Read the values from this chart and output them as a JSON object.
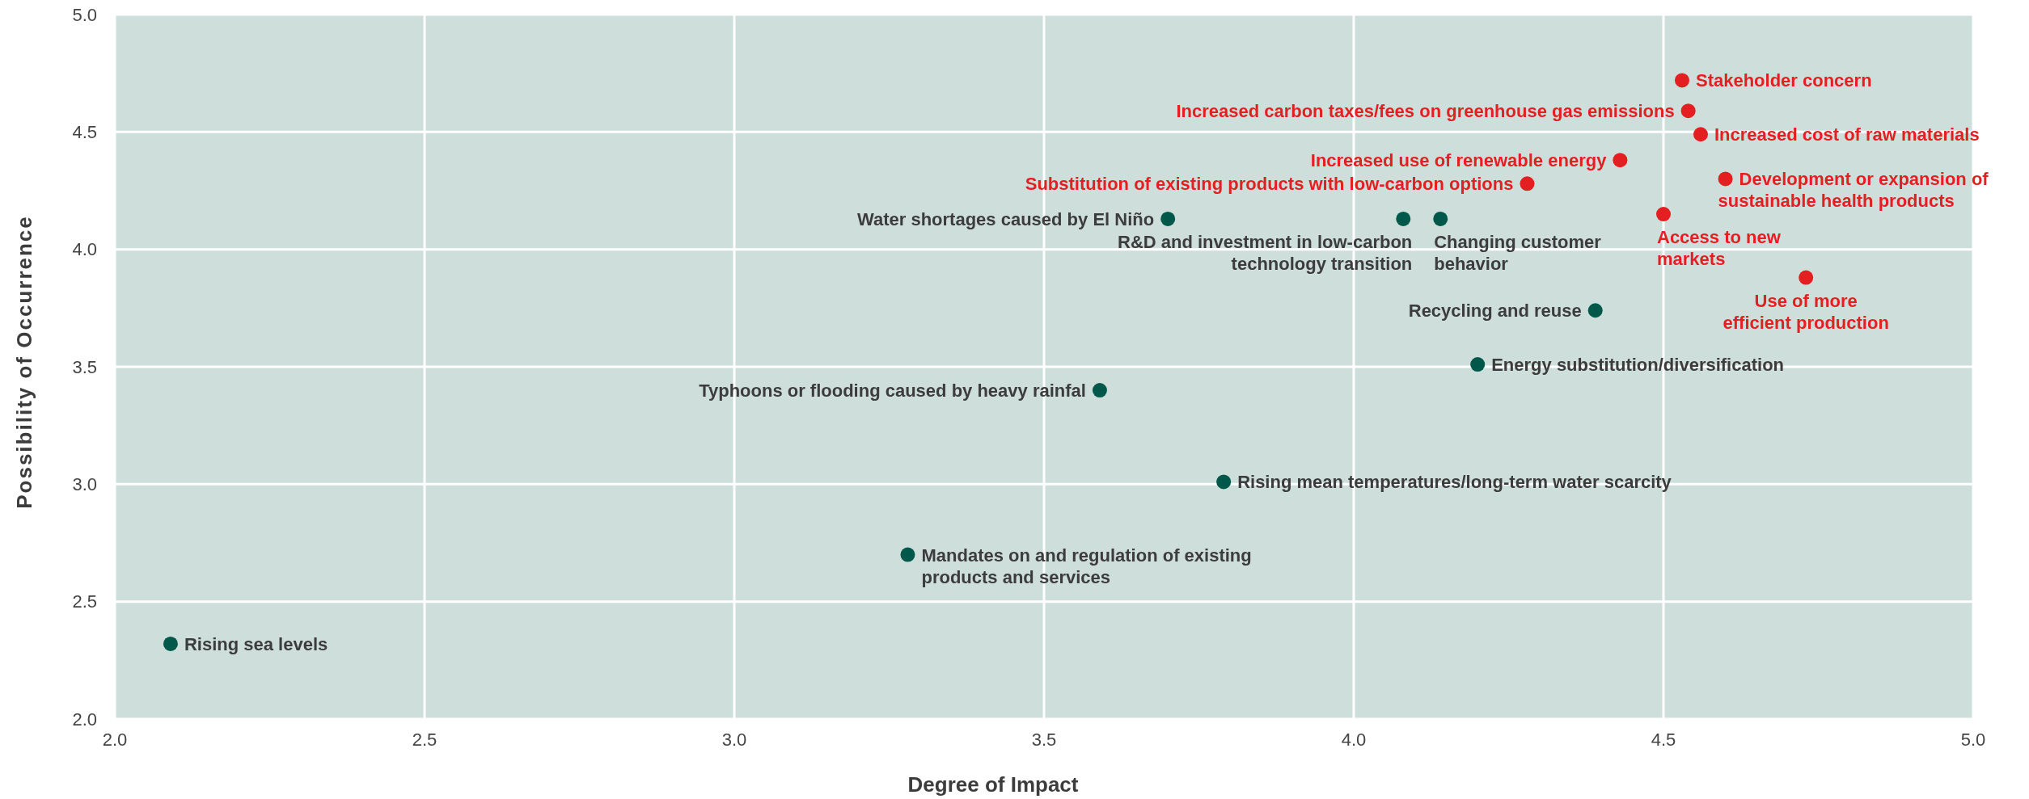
{
  "chart_data": {
    "type": "scatter",
    "xlabel": "Degree of Impact",
    "ylabel": "Possibility of Occurrence",
    "xlim": [
      2,
      5
    ],
    "ylim": [
      2,
      5
    ],
    "xticks": [
      {
        "value": 2,
        "label": "2.0"
      },
      2.5,
      {
        "value": 3,
        "label": "3.0"
      },
      3.5,
      {
        "value": 4,
        "label": "4.0"
      },
      4.5,
      {
        "value": 5,
        "label": "5.0"
      }
    ],
    "yticks": [
      {
        "value": 2,
        "label": "2.0"
      },
      2.5,
      {
        "value": 3,
        "label": "3.0"
      },
      3.5,
      {
        "value": 4,
        "label": "4.0"
      },
      4.5,
      {
        "value": 5,
        "label": "5.0"
      }
    ],
    "grid": true,
    "marker": "circle",
    "series": [
      {
        "color": "#00584a",
        "x": [
          2.09,
          3.28,
          3.59,
          3.79,
          3.7,
          4.08,
          4.14,
          4.39,
          4.2
        ],
        "values": [
          2.32,
          2.7,
          3.4,
          3.01,
          4.13,
          4.13,
          4.13,
          3.74,
          3.51
        ]
      },
      {
        "color": "#e41f22",
        "x": [
          4.53,
          4.54,
          4.56,
          4.43,
          4.28,
          4.6,
          4.5,
          4.73
        ],
        "values": [
          4.72,
          4.59,
          4.49,
          4.38,
          4.28,
          4.3,
          4.15,
          3.88
        ]
      }
    ],
    "annotations": [
      {
        "text": "Rising sea levels",
        "x": 2.09,
        "y": 2.32
      },
      {
        "text": "Mandates on and regulation of existing products and services",
        "x": 3.28,
        "y": 2.7
      },
      {
        "text": "Typhoons or flooding caused by heavy rainfal",
        "x": 3.59,
        "y": 3.4
      },
      {
        "text": "Rising mean temperatures/long-term water scarcity",
        "x": 3.79,
        "y": 3.01
      },
      {
        "text": "Water shortages caused by El Niño",
        "x": 3.7,
        "y": 4.13
      },
      {
        "text": "R&D and investment in low-carbon technology transition",
        "x": 4.08,
        "y": 4.13
      },
      {
        "text": "Changing customer behavior",
        "x": 4.14,
        "y": 4.13
      },
      {
        "text": "Recycling and reuse",
        "x": 4.39,
        "y": 3.74
      },
      {
        "text": "Energy substitution/diversification",
        "x": 4.2,
        "y": 3.51
      },
      {
        "text": "Stakeholder concern",
        "x": 4.53,
        "y": 4.72
      },
      {
        "text": "Increased carbon taxes/fees on greenhouse gas emissions",
        "x": 4.54,
        "y": 4.59
      },
      {
        "text": "Increased cost of raw materials",
        "x": 4.56,
        "y": 4.49
      },
      {
        "text": "Increased use of renewable energy",
        "x": 4.43,
        "y": 4.38
      },
      {
        "text": "Substitution of existing products with low-carbon options",
        "x": 4.28,
        "y": 4.28
      },
      {
        "text": "Development or expansion of sustainable health products",
        "x": 4.6,
        "y": 4.3
      },
      {
        "text": "Access to new markets",
        "x": 4.5,
        "y": 4.15
      },
      {
        "text": "Use of more efficient production",
        "x": 4.73,
        "y": 3.88
      }
    ]
  }
}
